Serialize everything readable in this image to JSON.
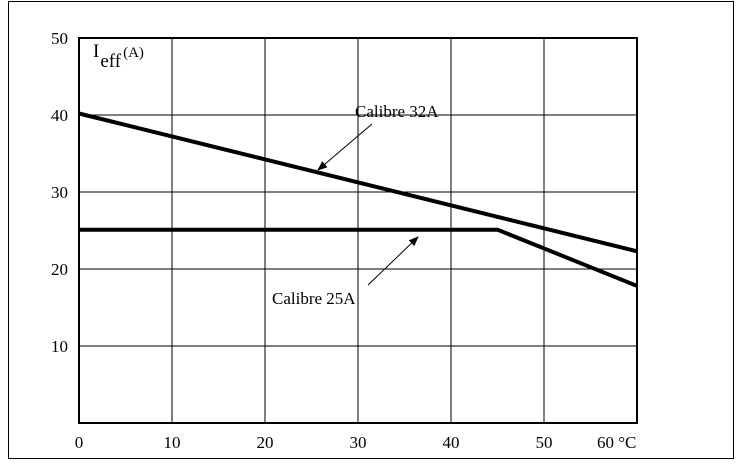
{
  "chart_data": {
    "type": "line",
    "title": "",
    "xlabel": "",
    "ylabel": "I",
    "ylabel_subscript": "eff",
    "ylabel_unit": "(A)",
    "xlim": [
      0,
      60
    ],
    "ylim": [
      0,
      50
    ],
    "x_ticks": [
      0,
      10,
      20,
      30,
      40,
      50,
      60
    ],
    "y_ticks": [
      10,
      20,
      30,
      40,
      50
    ],
    "x_tick_labels": [
      "0",
      "10",
      "20",
      "30",
      "40",
      "50",
      "60 °C"
    ],
    "y_tick_labels": [
      "10",
      "20",
      "30",
      "40",
      "50"
    ],
    "grid": true,
    "series": [
      {
        "name": "Calibre 32A",
        "color": "#000000",
        "points": [
          [
            0,
            40.2
          ],
          [
            60,
            22.3
          ]
        ]
      },
      {
        "name": "Calibre 25A",
        "color": "#000000",
        "points": [
          [
            0,
            25.1
          ],
          [
            45,
            25.1
          ],
          [
            60,
            17.8
          ]
        ]
      }
    ]
  }
}
